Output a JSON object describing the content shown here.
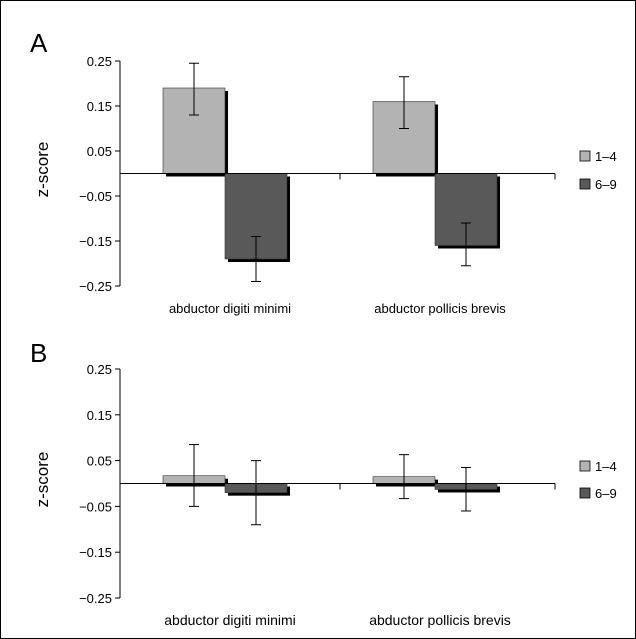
{
  "colors": {
    "series_1": "#b3b3b3",
    "series_2": "#595959",
    "shadow": "#000000",
    "axis": "#000000"
  },
  "chart_data": [
    {
      "type": "bar",
      "panel_label": "A",
      "title": "",
      "xlabel": "",
      "ylabel": "z-score",
      "ylim": [
        -0.25,
        0.25
      ],
      "yticks": [
        "0.25",
        "0.15",
        "0.05",
        "−0.05",
        "−0.15",
        "−0.25"
      ],
      "ytick_values": [
        0.25,
        0.15,
        0.05,
        -0.05,
        -0.15,
        -0.25
      ],
      "categories": [
        "abductor digiti minimi",
        "abductor pollicis brevis"
      ],
      "series": [
        {
          "name": "1–4",
          "values": [
            0.19,
            0.16
          ],
          "err_low": [
            0.13,
            0.1
          ],
          "err_high": [
            0.245,
            0.215
          ]
        },
        {
          "name": "6–9",
          "values": [
            -0.19,
            -0.16
          ],
          "err_low": [
            -0.24,
            -0.205
          ],
          "err_high": [
            -0.14,
            -0.11
          ]
        }
      ],
      "legend": "right",
      "grid": false
    },
    {
      "type": "bar",
      "panel_label": "B",
      "title": "",
      "xlabel": "",
      "ylabel": "z-score",
      "ylim": [
        -0.25,
        0.25
      ],
      "yticks": [
        "0.25",
        "0.15",
        "0.05",
        "−0.05",
        "−0.15",
        "−0.25"
      ],
      "ytick_values": [
        0.25,
        0.15,
        0.05,
        -0.05,
        -0.15,
        -0.25
      ],
      "categories": [
        "abductor digiti minimi",
        "abductor pollicis brevis"
      ],
      "series": [
        {
          "name": "1–4",
          "values": [
            0.017,
            0.015
          ],
          "err_low": [
            -0.05,
            -0.033
          ],
          "err_high": [
            0.085,
            0.063
          ]
        },
        {
          "name": "6–9",
          "values": [
            -0.02,
            -0.013
          ],
          "err_low": [
            -0.09,
            -0.06
          ],
          "err_high": [
            0.05,
            0.035
          ]
        }
      ],
      "legend": "right",
      "grid": false
    }
  ]
}
